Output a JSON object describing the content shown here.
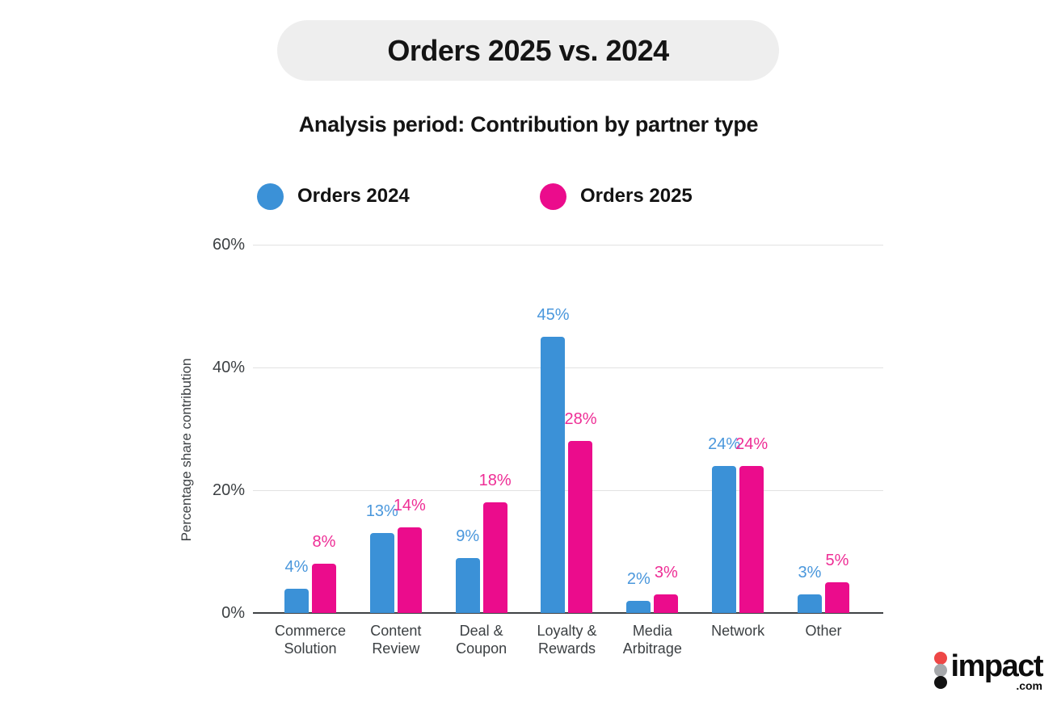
{
  "chart_data": {
    "type": "bar",
    "title": "Orders 2025 vs. 2024",
    "subtitle": "Analysis period: Contribution by partner type",
    "ylabel": "Percentage share contribution",
    "ylim": [
      0,
      60
    ],
    "yticks": [
      {
        "value": 0,
        "label": "0%"
      },
      {
        "value": 20,
        "label": "20%"
      },
      {
        "value": 40,
        "label": "40%"
      },
      {
        "value": 60,
        "label": "60%"
      }
    ],
    "grid": true,
    "legend_position": "top-left",
    "categories": [
      "Commerce Solution",
      "Content Review",
      "Deal & Coupon",
      "Loyalty & Rewards",
      "Media Arbitrage",
      "Network",
      "Other"
    ],
    "category_lines": [
      [
        "Commerce",
        "Solution"
      ],
      [
        "Content",
        "Review"
      ],
      [
        "Deal &",
        "Coupon"
      ],
      [
        "Loyalty &",
        "Rewards"
      ],
      [
        "Media",
        "Arbitrage"
      ],
      [
        "Network"
      ],
      [
        "Other"
      ]
    ],
    "series": [
      {
        "name": "Orders 2024",
        "color": "#3B91D7",
        "label_color": "#4A97DC",
        "values": [
          4,
          13,
          9,
          45,
          2,
          24,
          3
        ],
        "labels": [
          "4%",
          "13%",
          "9%",
          "45%",
          "2%",
          "24%",
          "3%"
        ]
      },
      {
        "name": "Orders 2025",
        "color": "#EB0C8C",
        "label_color": "#EE2D95",
        "values": [
          8,
          14,
          18,
          28,
          3,
          24,
          5
        ],
        "labels": [
          "8%",
          "14%",
          "18%",
          "28%",
          "3%",
          "24%",
          "5%"
        ]
      }
    ]
  },
  "logo": {
    "word": "impact",
    "tld": ".com",
    "dot_colors": [
      "#EE4746",
      "#A6A8AB",
      "#121212"
    ]
  }
}
